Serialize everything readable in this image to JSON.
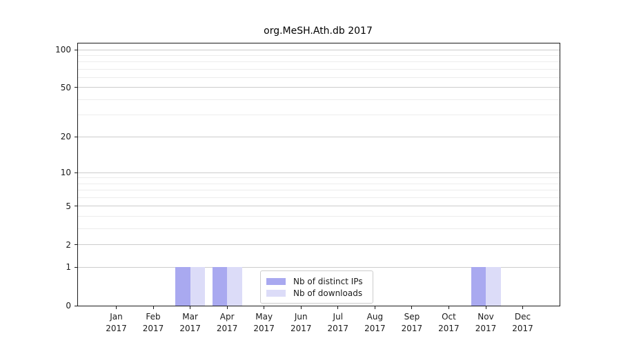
{
  "title": "org.MeSH.Ath.db 2017",
  "colors": {
    "distinct_ips": "#a9a9f0",
    "downloads": "#dcdcf8",
    "grid_major": "#cccccc",
    "grid_minor": "#ececec",
    "axis": "#1a1a1a"
  },
  "legend": {
    "items": [
      {
        "label": "Nb of distinct IPs",
        "color": "#a9a9f0"
      },
      {
        "label": "Nb of downloads",
        "color": "#dcdcf8"
      }
    ]
  },
  "chart_data": {
    "type": "bar",
    "title": "org.MeSH.Ath.db 2017",
    "categories": [
      "Jan",
      "Feb",
      "Mar",
      "Apr",
      "May",
      "Jun",
      "Jul",
      "Aug",
      "Sep",
      "Oct",
      "Nov",
      "Dec"
    ],
    "year_label": "2017",
    "series": [
      {
        "name": "Nb of distinct IPs",
        "color": "#a9a9f0",
        "values": [
          0,
          0,
          1,
          1,
          0,
          0,
          0,
          0,
          0,
          0,
          1,
          0
        ]
      },
      {
        "name": "Nb of downloads",
        "color": "#dcdcf8",
        "values": [
          0,
          0,
          1,
          1,
          0,
          0,
          0,
          0,
          0,
          0,
          1,
          0
        ]
      }
    ],
    "xlabel": "",
    "ylabel": "",
    "y_scale": "log1p",
    "y_ticks": [
      0,
      1,
      2,
      5,
      10,
      20,
      50,
      100
    ],
    "y_minor_ticks": [
      3,
      4,
      6,
      7,
      8,
      9,
      30,
      40,
      60,
      70,
      80,
      90
    ],
    "ylim": [
      0,
      112
    ],
    "grid": true,
    "legend_position": "lower center"
  }
}
